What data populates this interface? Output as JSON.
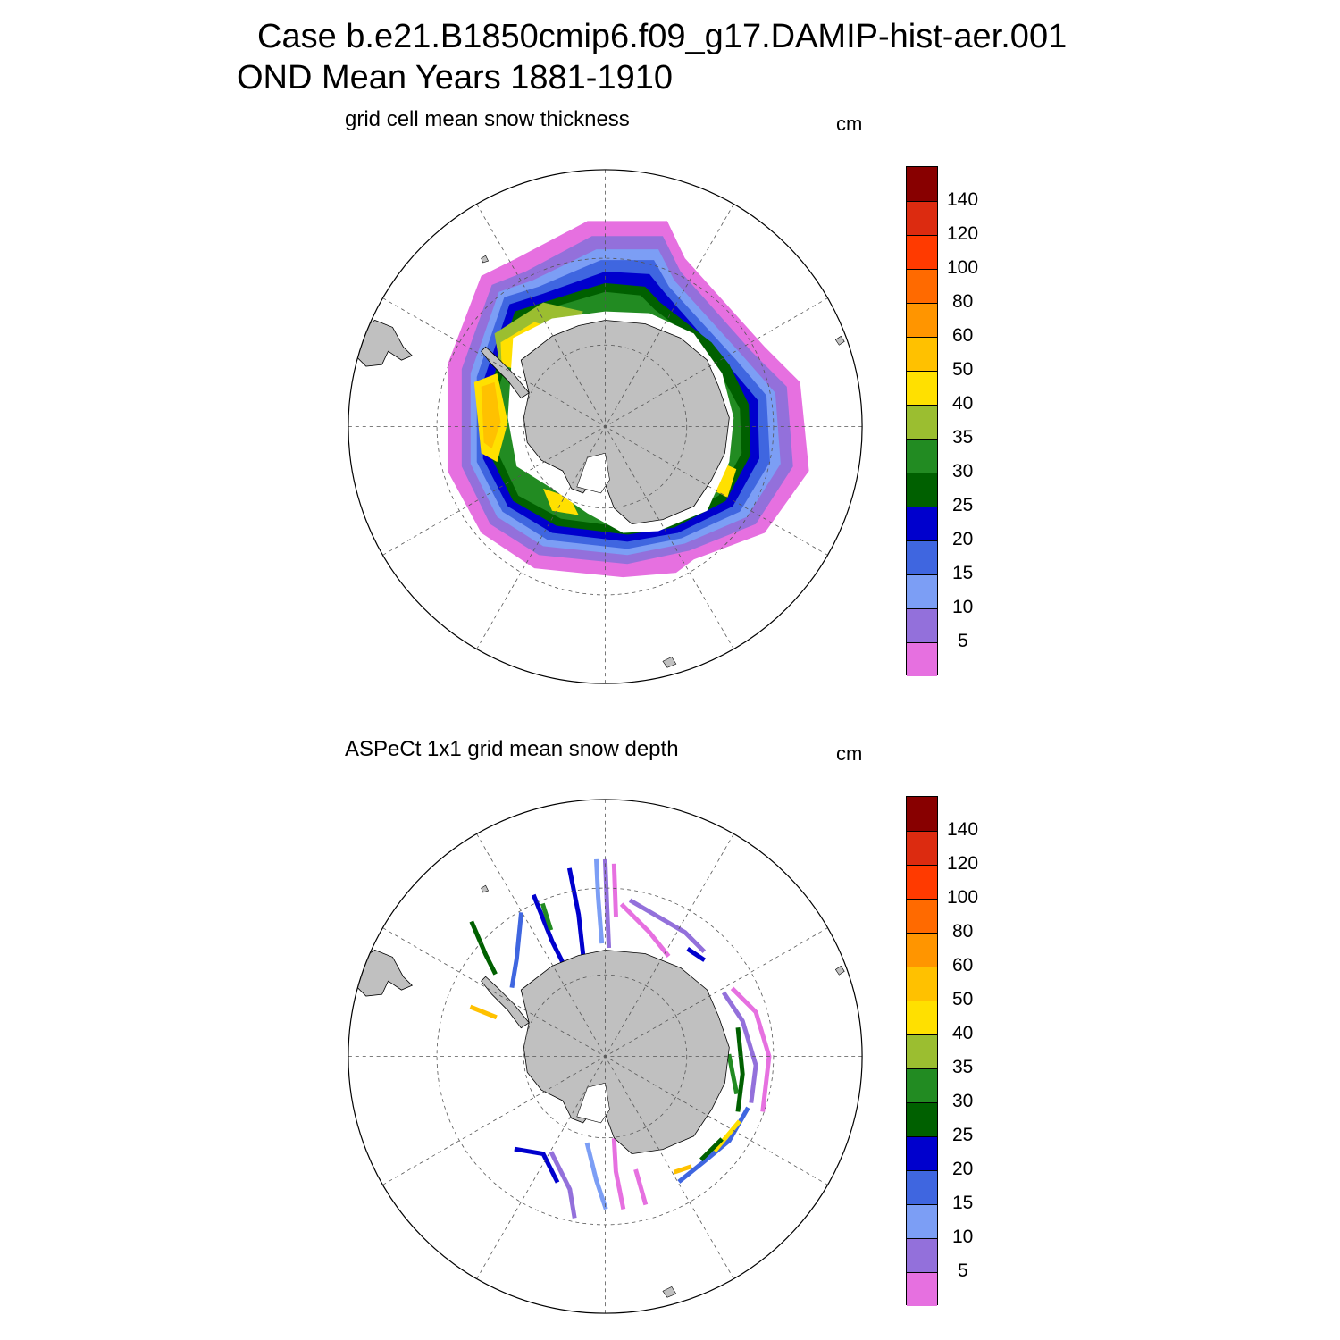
{
  "figure": {
    "title_line1": "Case b.e21.B1850cmip6.f09_g17.DAMIP-hist-aer.001",
    "title_line2": "OND Mean   Years 1881-1910"
  },
  "panels": [
    {
      "title": "grid cell mean snow thickness",
      "units": "cm"
    },
    {
      "title": "ASPeCt 1x1 grid mean snow depth",
      "units": "cm"
    }
  ],
  "colorbar": {
    "colors": [
      "#880000",
      "#dc2b10",
      "#ff3a00",
      "#ff6a00",
      "#ff9500",
      "#ffc100",
      "#ffe000",
      "#9bbe30",
      "#228b22",
      "#006000",
      "#0000cd",
      "#3f66e0",
      "#7c9ef5",
      "#9370db",
      "#e670e0"
    ],
    "labels": [
      "140",
      "120",
      "100",
      "80",
      "60",
      "50",
      "40",
      "35",
      "30",
      "25",
      "20",
      "15",
      "10",
      "5"
    ]
  },
  "chart_data": {
    "type": "heatmap",
    "projection": "south polar stereographic",
    "levels_cm": [
      5,
      10,
      15,
      20,
      25,
      30,
      35,
      40,
      50,
      60,
      80,
      100,
      120,
      140
    ],
    "panels": [
      {
        "title": "grid cell mean snow thickness",
        "units": "cm"
      },
      {
        "title": "ASPeCt 1x1 grid mean snow depth",
        "units": "cm"
      }
    ]
  }
}
